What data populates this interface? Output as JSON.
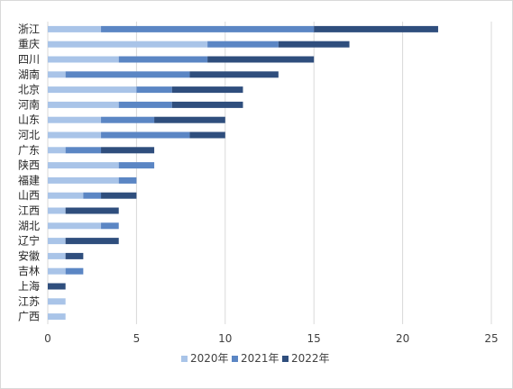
{
  "chart_data": {
    "type": "bar",
    "orientation": "horizontal",
    "stacked": true,
    "categories": [
      "浙江",
      "重庆",
      "四川",
      "湖南",
      "北京",
      "河南",
      "山东",
      "河北",
      "广东",
      "陕西",
      "福建",
      "山西",
      "江西",
      "湖北",
      "辽宁",
      "安徽",
      "吉林",
      "上海",
      "江苏",
      "广西"
    ],
    "series": [
      {
        "name": "2020年",
        "color": "#a9c4e8",
        "values": [
          3,
          9,
          4,
          1,
          5,
          4,
          3,
          3,
          1,
          4,
          4,
          2,
          1,
          3,
          1,
          1,
          1,
          0,
          1,
          1
        ]
      },
      {
        "name": "2021年",
        "color": "#5b86c4",
        "values": [
          12,
          4,
          5,
          7,
          2,
          3,
          3,
          5,
          2,
          2,
          1,
          1,
          0,
          1,
          0,
          0,
          1,
          0,
          0,
          0
        ]
      },
      {
        "name": "2022年",
        "color": "#2f4e7d",
        "values": [
          7,
          4,
          6,
          5,
          4,
          4,
          4,
          2,
          3,
          0,
          0,
          2,
          3,
          0,
          3,
          1,
          0,
          1,
          0,
          0
        ]
      }
    ],
    "xlim": [
      0,
      25
    ],
    "xticks": [
      0,
      5,
      10,
      15,
      20,
      25
    ],
    "grid": "vertical",
    "legend_position": "bottom",
    "title": "",
    "xlabel": "",
    "ylabel": ""
  }
}
